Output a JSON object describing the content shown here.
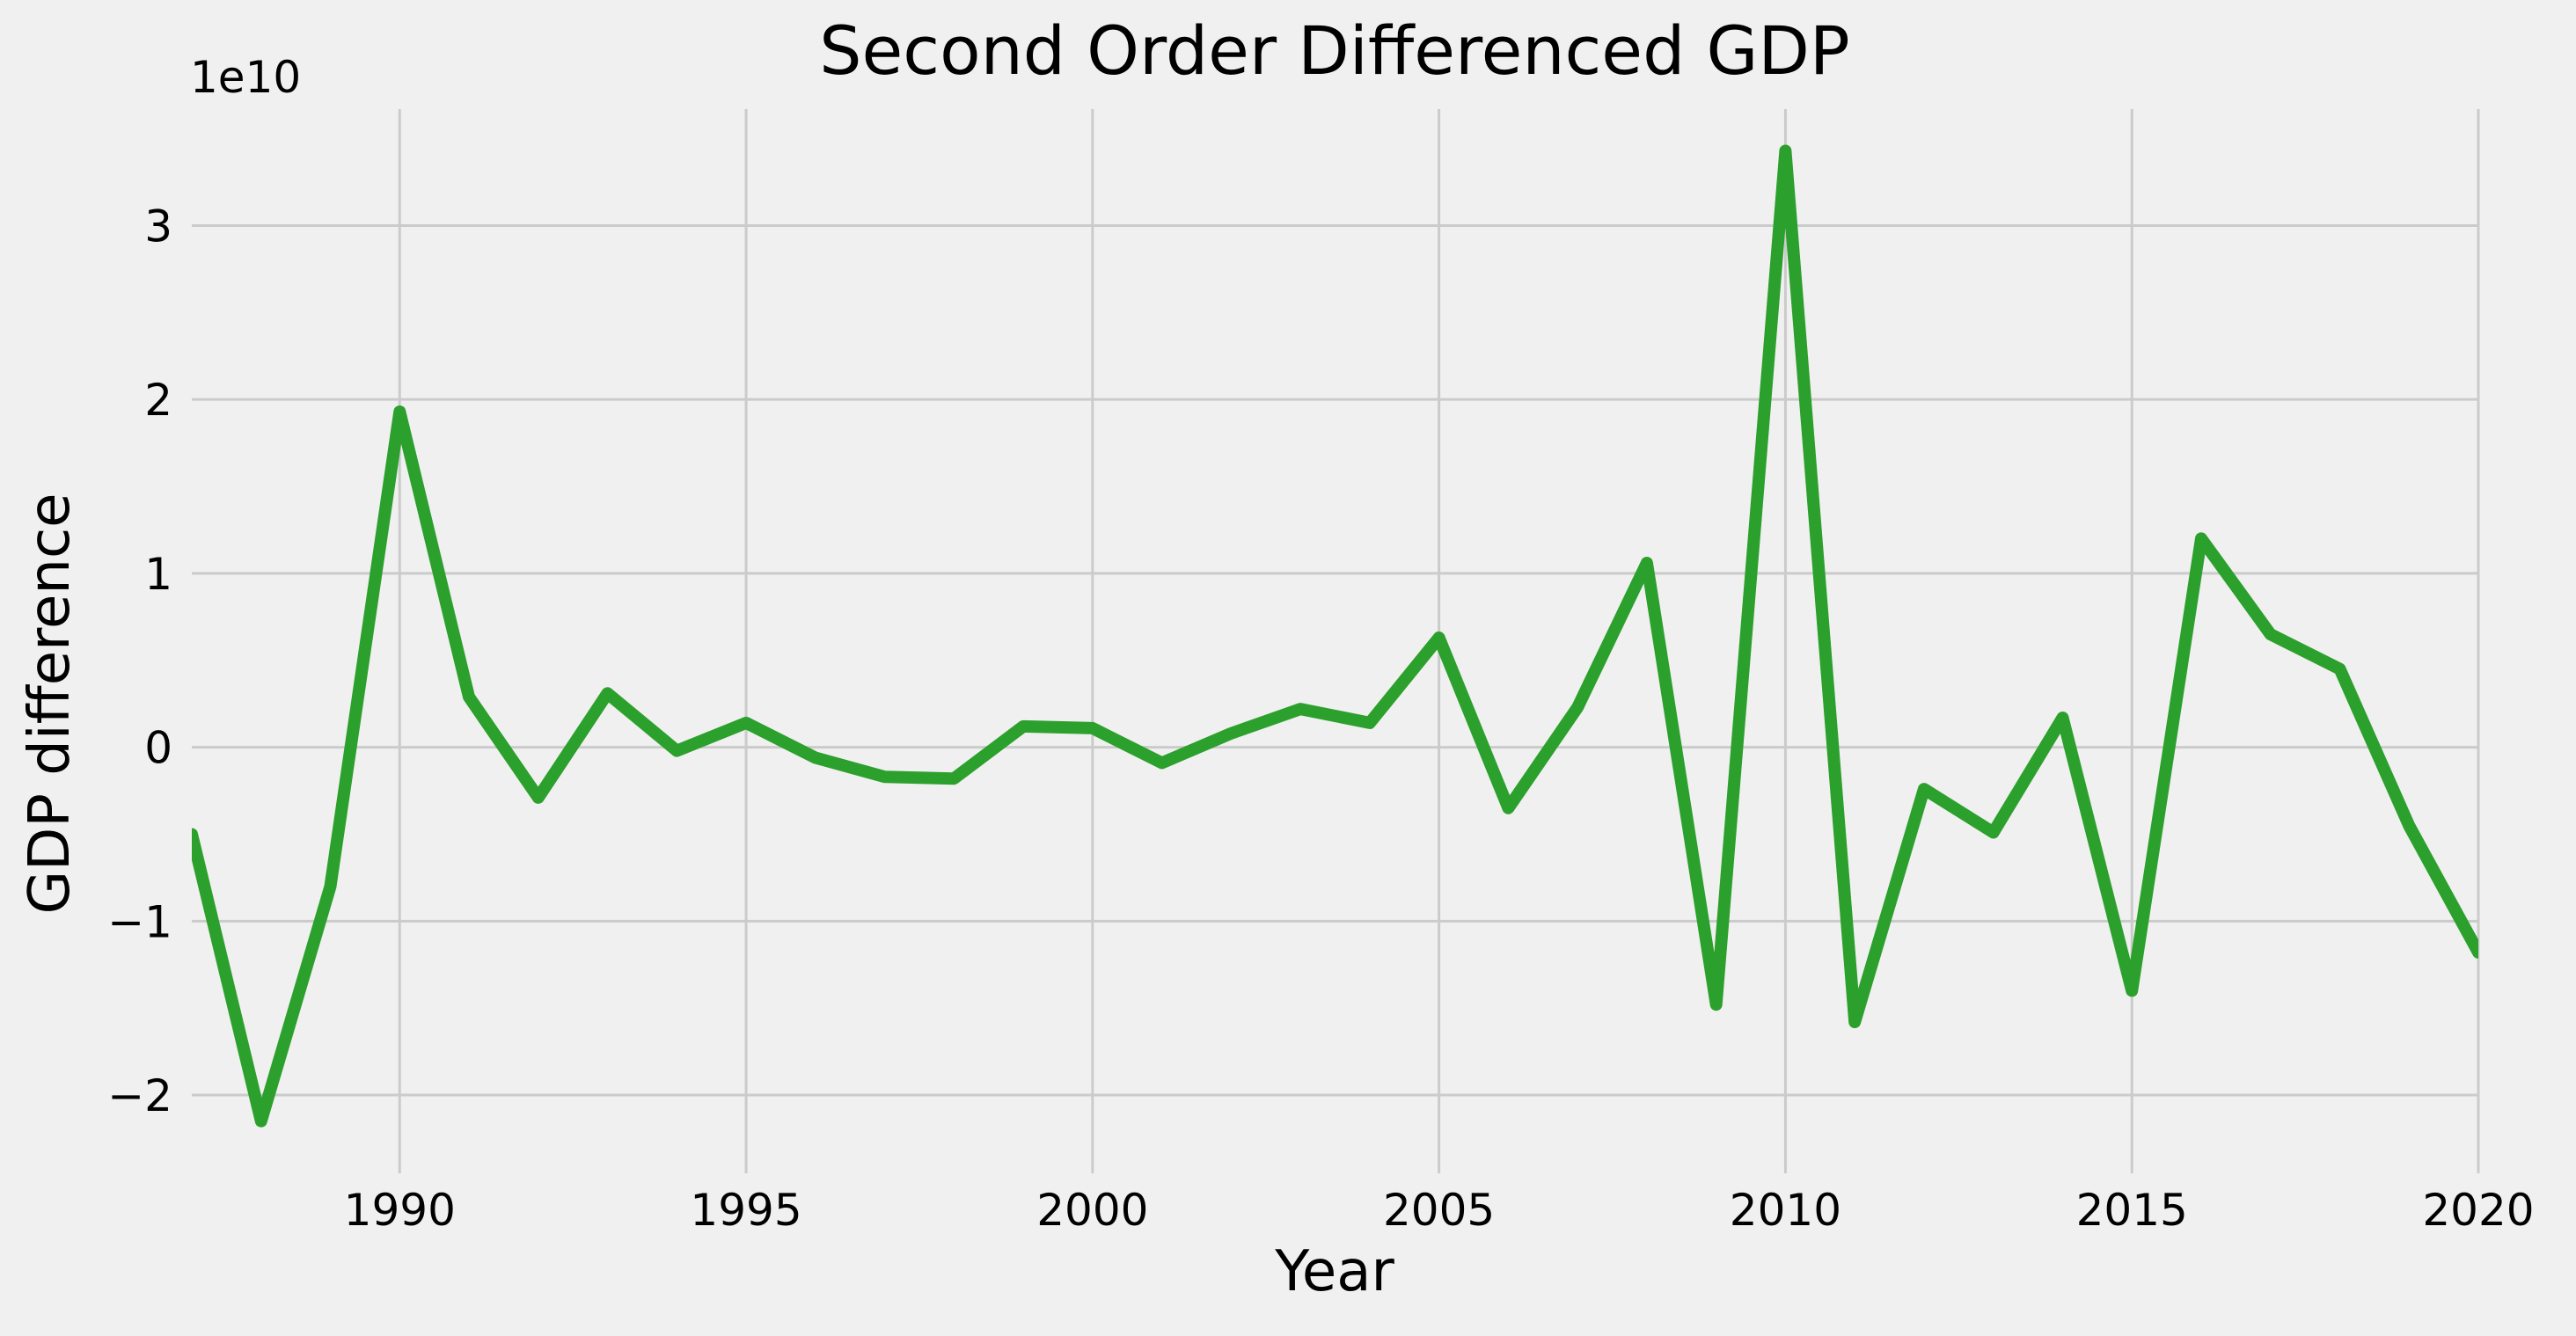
{
  "chart_data": {
    "type": "line",
    "title": "Second Order Differenced GDP",
    "xlabel": "Year",
    "ylabel": "GDP difference",
    "offset_text": "1e10",
    "xlim": [
      1987,
      2020
    ],
    "ylim": [
      -2.45,
      3.67
    ],
    "y_scale_multiplier": 10000000000,
    "x_ticks": [
      1990,
      1995,
      2000,
      2005,
      2010,
      2015,
      2020
    ],
    "x_tick_labels": [
      "1990",
      "1995",
      "2000",
      "2005",
      "2010",
      "2015",
      "2020"
    ],
    "y_ticks": [
      -2,
      -1,
      0,
      1,
      2,
      3
    ],
    "y_tick_labels": [
      "−2",
      "−1",
      "0",
      "1",
      "2",
      "3"
    ],
    "grid": true,
    "line_color": "#2ca02c",
    "background_color": "#f0f0f0",
    "grid_color": "#cbcbcb",
    "series": [
      {
        "x": [
          1987,
          1988,
          1989,
          1990,
          1991,
          1992,
          1993,
          1994,
          1995,
          1996,
          1997,
          1998,
          1999,
          2000,
          2001,
          2002,
          2003,
          2004,
          2005,
          2006,
          2007,
          2008,
          2009,
          2010,
          2011,
          2012,
          2013,
          2014,
          2015,
          2016,
          2017,
          2018,
          2019,
          2020
        ],
        "values": [
          -0.5,
          -2.15,
          -0.8,
          1.93,
          0.29,
          -0.29,
          0.31,
          -0.02,
          0.14,
          -0.06,
          -0.17,
          -0.18,
          0.12,
          0.11,
          -0.09,
          0.08,
          0.22,
          0.14,
          0.63,
          -0.35,
          0.23,
          1.06,
          -1.48,
          3.43,
          -1.58,
          -0.24,
          -0.49,
          0.17,
          -1.4,
          1.2,
          0.65,
          0.45,
          -0.45,
          -1.18
        ]
      }
    ]
  }
}
